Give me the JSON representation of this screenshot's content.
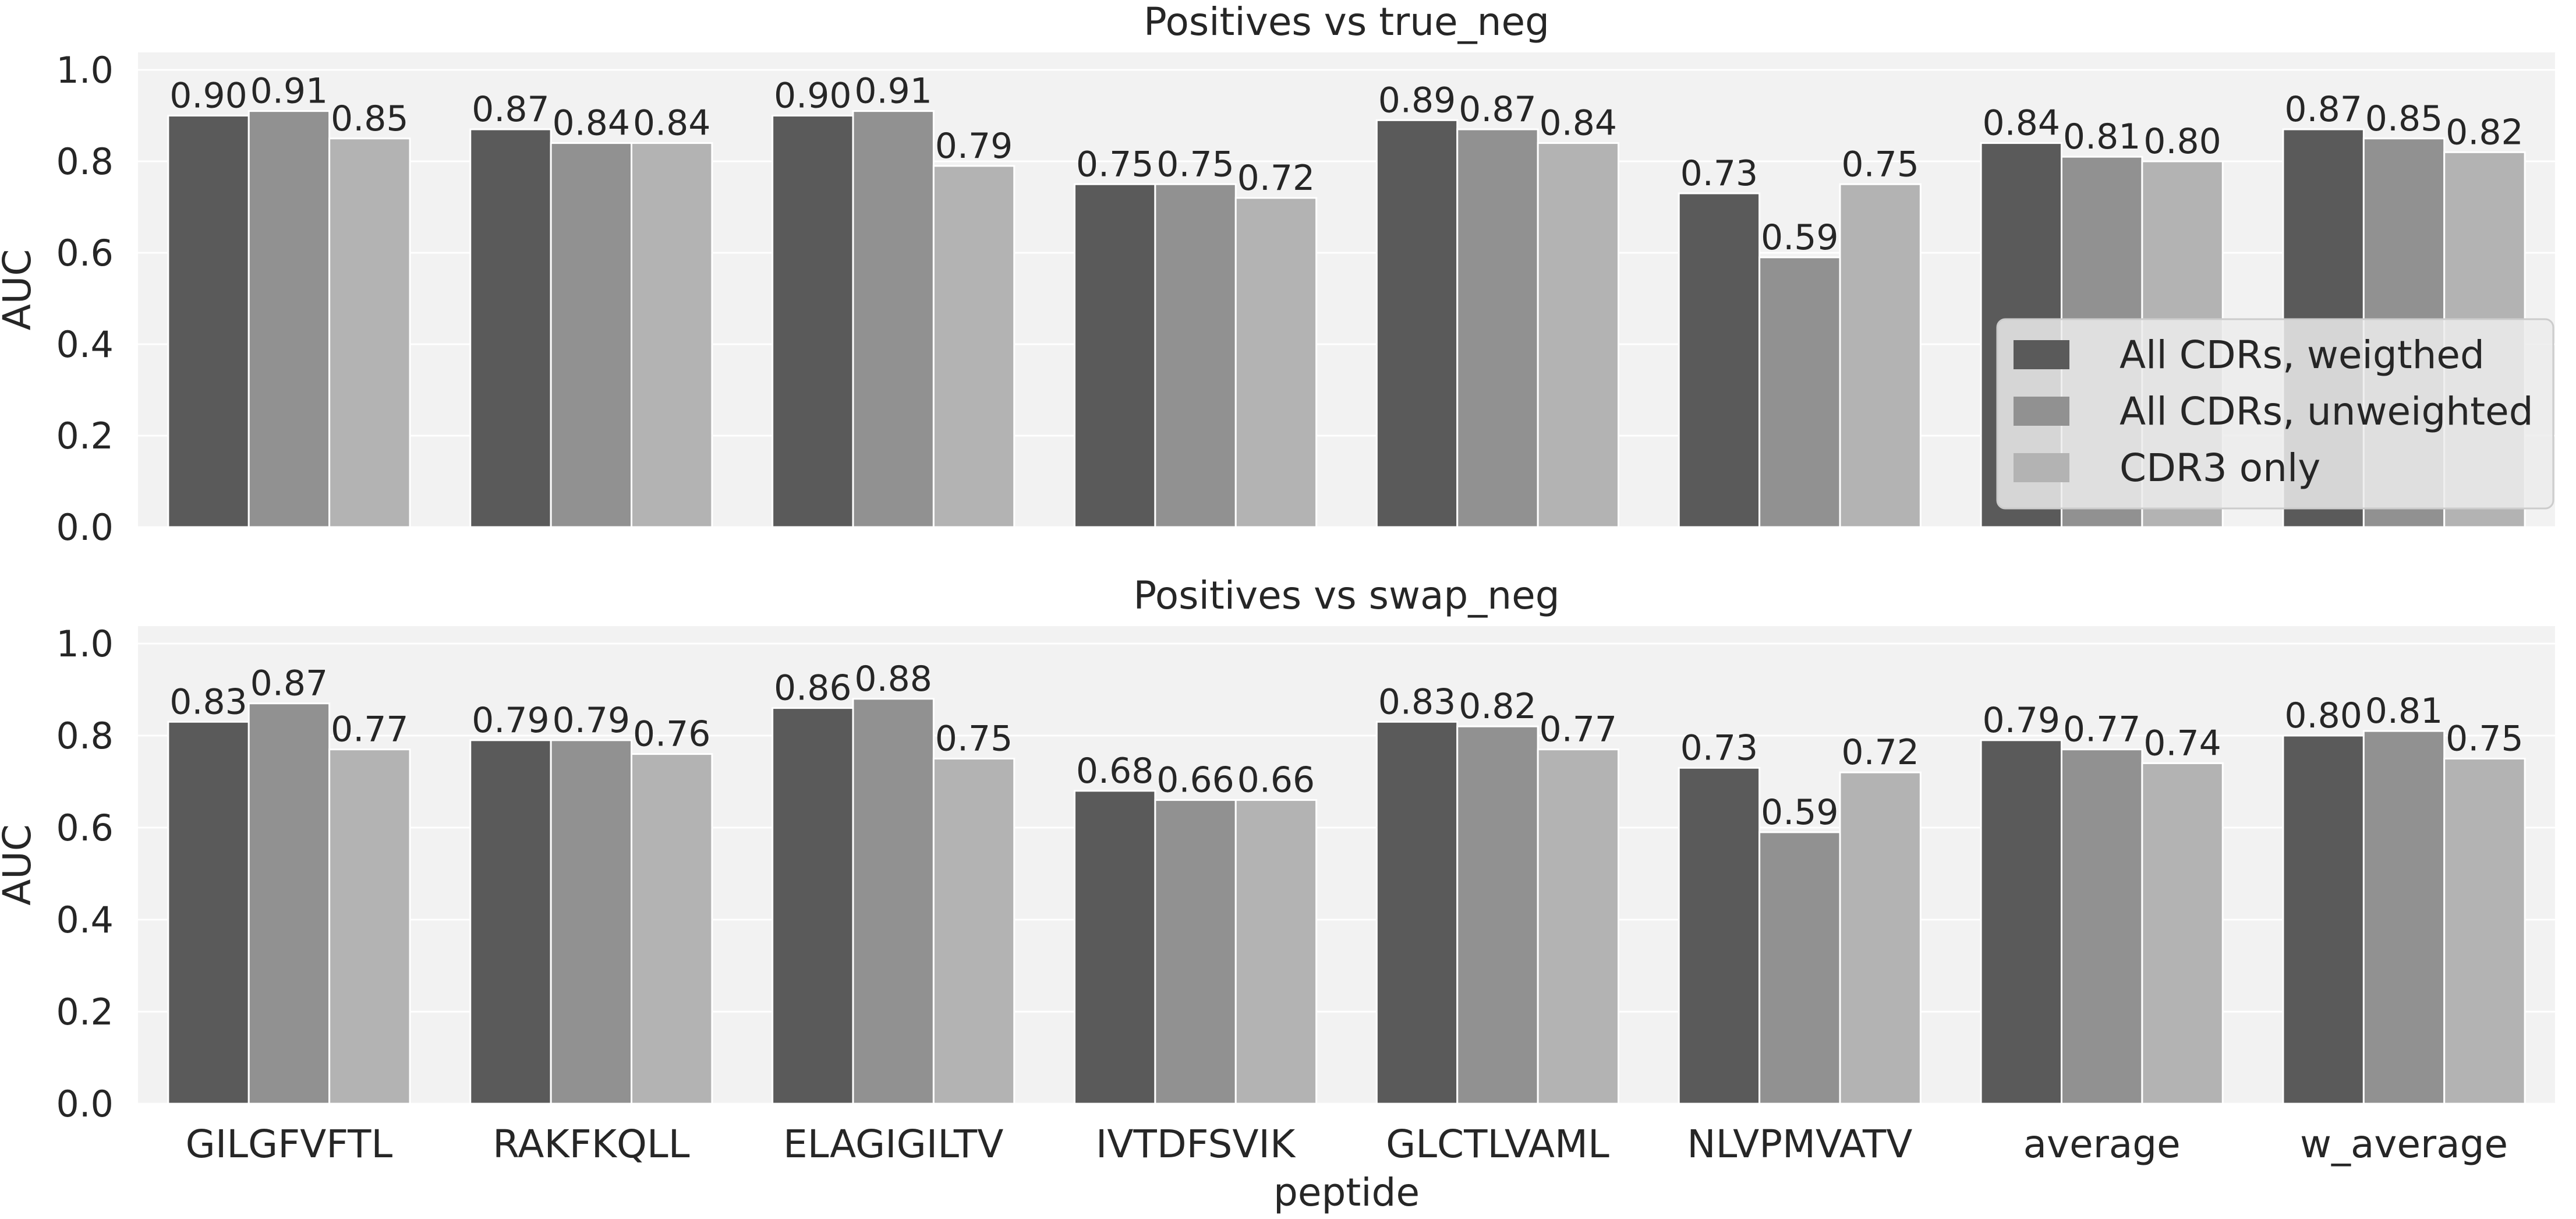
{
  "chart_data": [
    {
      "type": "bar",
      "title": "Positives vs true_neg",
      "xlabel": "",
      "ylabel": "AUC",
      "ylim": [
        0,
        1.0
      ],
      "yticks": [
        "0.0",
        "0.2",
        "0.4",
        "0.6",
        "0.8",
        "1.0"
      ],
      "categories": [
        "GILGFVFTL",
        "RAKFKQLL",
        "ELAGIGILTV",
        "IVTDFSVIK",
        "GLCTLVAML",
        "NLVPMVATV",
        "average",
        "w_average"
      ],
      "series": [
        {
          "name": "All CDRs, weigthed",
          "color": "#5a5a5a",
          "values": [
            0.9,
            0.87,
            0.9,
            0.75,
            0.89,
            0.73,
            0.84,
            0.87
          ],
          "labels": [
            "0.90",
            "0.87",
            "0.90",
            "0.75",
            "0.89",
            "0.73",
            "0.84",
            "0.87"
          ]
        },
        {
          "name": "All CDRs, unweighted",
          "color": "#919191",
          "values": [
            0.91,
            0.84,
            0.91,
            0.75,
            0.87,
            0.59,
            0.81,
            0.85
          ],
          "labels": [
            "0.91",
            "0.84",
            "0.91",
            "0.75",
            "0.87",
            "0.59",
            "0.81",
            "0.85"
          ]
        },
        {
          "name": "CDR3 only",
          "color": "#b3b3b3",
          "values": [
            0.85,
            0.84,
            0.79,
            0.72,
            0.84,
            0.75,
            0.8,
            0.82
          ],
          "labels": [
            "0.85",
            "0.84",
            "0.79",
            "0.72",
            "0.84",
            "0.75",
            "0.80",
            "0.82"
          ]
        }
      ],
      "legend": {
        "position": "center-right",
        "entries": [
          "All CDRs, weigthed",
          "All CDRs, unweighted",
          "CDR3 only"
        ]
      }
    },
    {
      "type": "bar",
      "title": "Positives vs swap_neg",
      "xlabel": "peptide",
      "ylabel": "AUC",
      "ylim": [
        0,
        1.0
      ],
      "yticks": [
        "0.0",
        "0.2",
        "0.4",
        "0.6",
        "0.8",
        "1.0"
      ],
      "categories": [
        "GILGFVFTL",
        "RAKFKQLL",
        "ELAGIGILTV",
        "IVTDFSVIK",
        "GLCTLVAML",
        "NLVPMVATV",
        "average",
        "w_average"
      ],
      "series": [
        {
          "name": "All CDRs, weigthed",
          "color": "#5a5a5a",
          "values": [
            0.83,
            0.79,
            0.86,
            0.68,
            0.83,
            0.73,
            0.79,
            0.8
          ],
          "labels": [
            "0.83",
            "0.79",
            "0.86",
            "0.68",
            "0.83",
            "0.73",
            "0.79",
            "0.80"
          ]
        },
        {
          "name": "All CDRs, unweighted",
          "color": "#919191",
          "values": [
            0.87,
            0.79,
            0.88,
            0.66,
            0.82,
            0.59,
            0.77,
            0.81
          ],
          "labels": [
            "0.87",
            "0.79",
            "0.88",
            "0.66",
            "0.82",
            "0.59",
            "0.77",
            "0.81"
          ]
        },
        {
          "name": "CDR3 only",
          "color": "#b3b3b3",
          "values": [
            0.77,
            0.76,
            0.75,
            0.66,
            0.77,
            0.72,
            0.74,
            0.75
          ],
          "labels": [
            "0.77",
            "0.76",
            "0.75",
            "0.66",
            "0.77",
            "0.72",
            "0.74",
            "0.75"
          ]
        }
      ]
    }
  ]
}
